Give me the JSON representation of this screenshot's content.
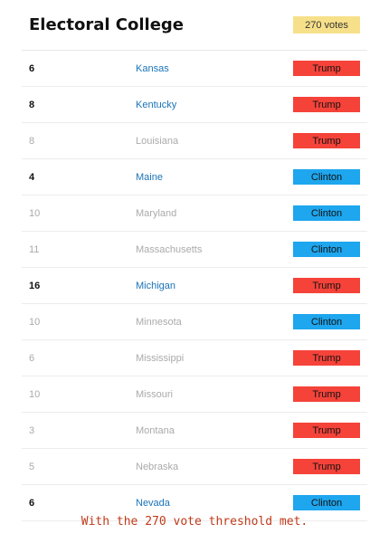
{
  "header": {
    "title": "Electoral College",
    "badge": "270 votes"
  },
  "colors": {
    "trump": "#f5433a",
    "clinton": "#1ea6ee",
    "badge": "#f7e08a",
    "active_state": "#1a73b8",
    "caption": "#c03a1a"
  },
  "rows": [
    {
      "votes": "6",
      "state": "Kansas",
      "winner": "Trump",
      "active": true
    },
    {
      "votes": "8",
      "state": "Kentucky",
      "winner": "Trump",
      "active": true
    },
    {
      "votes": "8",
      "state": "Louisiana",
      "winner": "Trump",
      "active": false
    },
    {
      "votes": "4",
      "state": "Maine",
      "winner": "Clinton",
      "active": true
    },
    {
      "votes": "10",
      "state": "Maryland",
      "winner": "Clinton",
      "active": false
    },
    {
      "votes": "11",
      "state": "Massachusetts",
      "winner": "Clinton",
      "active": false
    },
    {
      "votes": "16",
      "state": "Michigan",
      "winner": "Trump",
      "active": true
    },
    {
      "votes": "10",
      "state": "Minnesota",
      "winner": "Clinton",
      "active": false
    },
    {
      "votes": "6",
      "state": "Mississippi",
      "winner": "Trump",
      "active": false
    },
    {
      "votes": "10",
      "state": "Missouri",
      "winner": "Trump",
      "active": false
    },
    {
      "votes": "3",
      "state": "Montana",
      "winner": "Trump",
      "active": false
    },
    {
      "votes": "5",
      "state": "Nebraska",
      "winner": "Trump",
      "active": false
    },
    {
      "votes": "6",
      "state": "Nevada",
      "winner": "Clinton",
      "active": true
    }
  ],
  "caption": "With the 270 vote threshold met."
}
